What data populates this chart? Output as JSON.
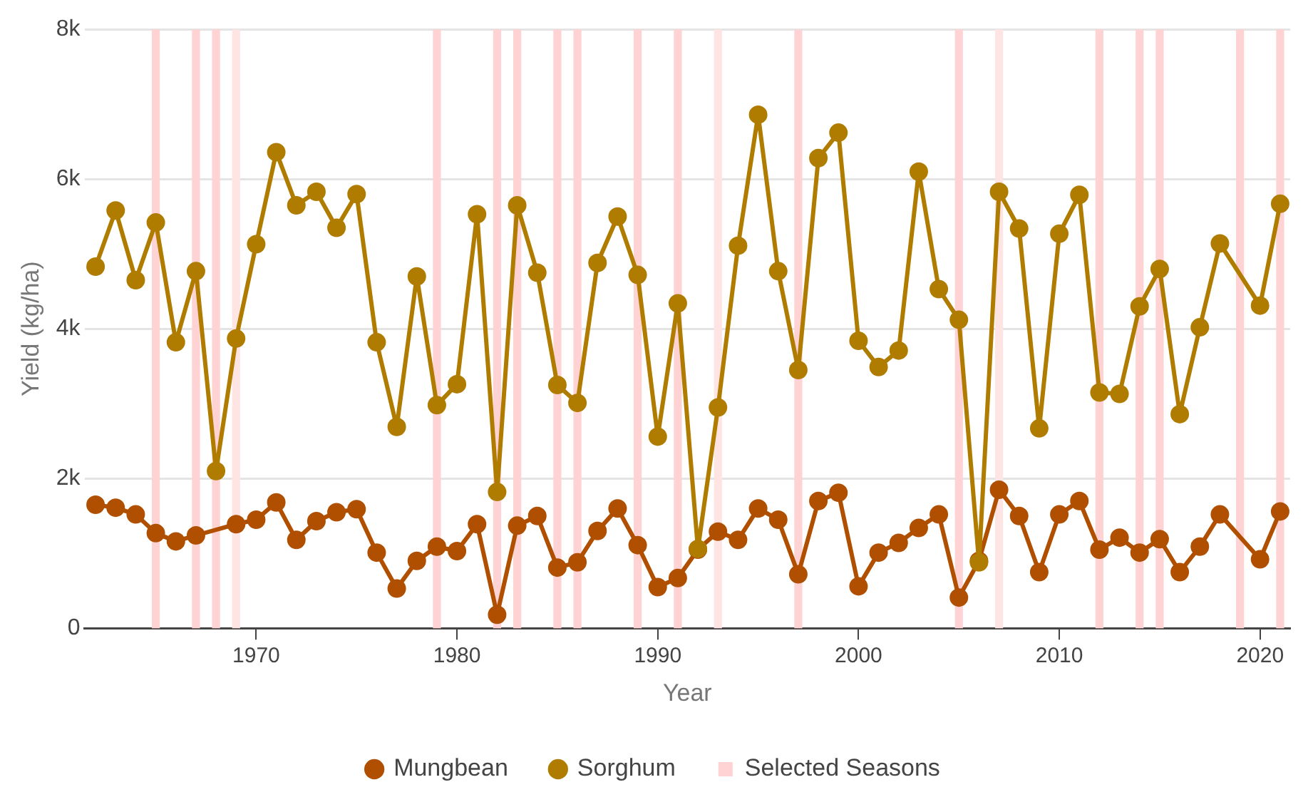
{
  "chart_data": {
    "type": "line",
    "xlabel": "Year",
    "ylabel": "Yield (kg/ha)",
    "x": [
      1962,
      1963,
      1964,
      1965,
      1966,
      1967,
      1968,
      1969,
      1970,
      1971,
      1972,
      1973,
      1974,
      1975,
      1976,
      1977,
      1978,
      1979,
      1980,
      1981,
      1982,
      1983,
      1984,
      1985,
      1986,
      1987,
      1988,
      1989,
      1990,
      1991,
      1992,
      1993,
      1994,
      1995,
      1996,
      1997,
      1998,
      1999,
      2000,
      2001,
      2002,
      2003,
      2004,
      2005,
      2006,
      2007,
      2008,
      2009,
      2010,
      2011,
      2012,
      2013,
      2014,
      2015,
      2016,
      2017,
      2018,
      2020,
      2021
    ],
    "series": [
      {
        "name": "Mungbean",
        "color": "#b04f00",
        "values": [
          1650,
          1610,
          1520,
          1270,
          1160,
          1240,
          null,
          1390,
          1450,
          1680,
          1180,
          1430,
          1550,
          1590,
          1010,
          530,
          900,
          1090,
          1030,
          1390,
          180,
          1370,
          1500,
          810,
          880,
          1300,
          1600,
          1110,
          550,
          670,
          1050,
          1290,
          1180,
          1600,
          1450,
          720,
          1700,
          1810,
          560,
          1010,
          1140,
          1340,
          1520,
          410,
          900,
          1850,
          1500,
          750,
          1520,
          1700,
          1050,
          1210,
          1010,
          1190,
          750,
          1090,
          1520,
          920,
          1560
        ]
      },
      {
        "name": "Sorghum",
        "color": "#b07c00",
        "values": [
          4830,
          5580,
          4650,
          5420,
          3820,
          4770,
          2100,
          3870,
          5130,
          6360,
          5650,
          5830,
          5350,
          5800,
          3820,
          2690,
          4700,
          2980,
          3260,
          5530,
          1820,
          5650,
          4750,
          3250,
          3010,
          4880,
          5500,
          4720,
          2560,
          4340,
          1060,
          2950,
          5110,
          6860,
          4770,
          3450,
          6280,
          6620,
          3840,
          3490,
          3710,
          6100,
          4530,
          4120,
          880,
          5830,
          5340,
          2670,
          5270,
          5790,
          3150,
          3130,
          4300,
          4800,
          2860,
          4020,
          5140,
          4310,
          5670
        ]
      }
    ],
    "bands": [
      {
        "axis": "x",
        "from": 1964.8,
        "to": 1965.2,
        "label": "Selected Seasons",
        "color": "#ffd3d3"
      },
      {
        "axis": "x",
        "from": 1966.8,
        "to": 1967.2,
        "color": "#ffd3d3"
      },
      {
        "axis": "x",
        "from": 1967.8,
        "to": 1968.2,
        "color": "#ffd3d3"
      },
      {
        "axis": "x",
        "from": 1968.8,
        "to": 1969.2,
        "color": "#ffe4e4"
      },
      {
        "axis": "x",
        "from": 1978.8,
        "to": 1979.2,
        "color": "#ffd3d3"
      },
      {
        "axis": "x",
        "from": 1981.8,
        "to": 1982.2,
        "color": "#ffd3d3"
      },
      {
        "axis": "x",
        "from": 1982.8,
        "to": 1983.2,
        "color": "#ffd3d3"
      },
      {
        "axis": "x",
        "from": 1984.8,
        "to": 1985.2,
        "color": "#ffd3d3"
      },
      {
        "axis": "x",
        "from": 1985.8,
        "to": 1986.2,
        "color": "#ffd3d3"
      },
      {
        "axis": "x",
        "from": 1988.8,
        "to": 1989.2,
        "color": "#ffd3d3"
      },
      {
        "axis": "x",
        "from": 1990.8,
        "to": 1991.2,
        "color": "#ffd3d3"
      },
      {
        "axis": "x",
        "from": 1992.8,
        "to": 1993.2,
        "color": "#ffe4e4"
      },
      {
        "axis": "x",
        "from": 1996.8,
        "to": 1997.2,
        "color": "#ffd3d3"
      },
      {
        "axis": "x",
        "from": 2004.8,
        "to": 2005.2,
        "color": "#ffd3d3"
      },
      {
        "axis": "x",
        "from": 2006.8,
        "to": 2007.2,
        "color": "#ffe4e4"
      },
      {
        "axis": "x",
        "from": 2011.8,
        "to": 2012.2,
        "color": "#ffd3d3"
      },
      {
        "axis": "x",
        "from": 2013.8,
        "to": 2014.2,
        "color": "#ffd3d3"
      },
      {
        "axis": "x",
        "from": 2014.8,
        "to": 2015.2,
        "color": "#ffd3d3"
      },
      {
        "axis": "x",
        "from": 2018.8,
        "to": 2019.2,
        "color": "#ffd3d3"
      },
      {
        "axis": "x",
        "from": 2020.8,
        "to": 2021.2,
        "color": "#ffd3d3"
      }
    ],
    "xlim": [
      1961.45,
      2021.5
    ],
    "xticks": [
      1970,
      1980,
      1990,
      2000,
      2010,
      2020
    ],
    "ylim": [
      0,
      8000
    ],
    "yticks": [
      0,
      {
        "value": 2000,
        "label": "2k"
      },
      {
        "value": 4000,
        "label": "4k"
      },
      {
        "value": 6000,
        "label": "6k"
      },
      {
        "value": 8000,
        "label": "8k"
      }
    ],
    "grid": "y",
    "legend": "bottom",
    "marker": "circle",
    "line_style": "solid"
  }
}
